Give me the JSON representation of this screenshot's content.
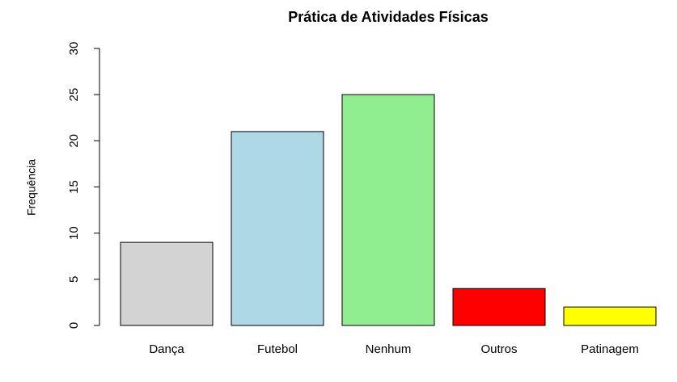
{
  "chart_data": {
    "type": "bar",
    "title": "Prática de Atividades Físicas",
    "y_label": "Frequência",
    "categories": [
      "Dança",
      "Futebol",
      "Nenhum",
      "Outros",
      "Patinagem"
    ],
    "values": [
      9,
      21,
      25,
      4,
      2
    ],
    "colors": [
      "#d3d3d3",
      "#add8e6",
      "#90ee90",
      "#ff0000",
      "#ffff00"
    ],
    "ylim": [
      0,
      30
    ],
    "yticks": [
      0,
      5,
      10,
      15,
      20,
      25,
      30
    ],
    "grid": false
  }
}
